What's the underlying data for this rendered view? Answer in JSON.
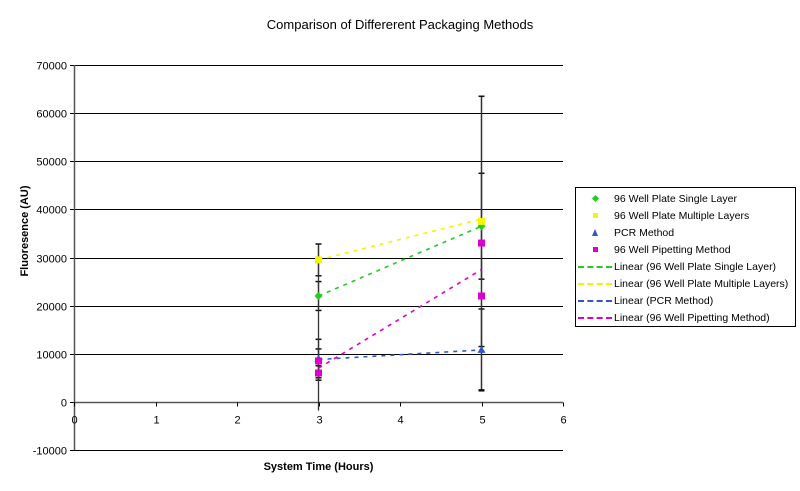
{
  "chart_data": {
    "type": "scatter",
    "title": "Comparison of Differerent Packaging Methods",
    "xlabel": "System Time (Hours)",
    "ylabel": "Fluoresence (AU)",
    "xlim": [
      0,
      6
    ],
    "ylim": [
      -10000,
      70000
    ],
    "x_ticks": [
      "0",
      "1",
      "2",
      "3",
      "4",
      "5",
      "6"
    ],
    "y_ticks": [
      "70000",
      "60000",
      "50000",
      "40000",
      "30000",
      "20000",
      "10000",
      "0",
      "-10000"
    ],
    "grid": "horizontal major gridlines",
    "legend_position": "right",
    "series": [
      {
        "name": "96 Well Plate Single Layer",
        "marker": "diamond",
        "color": "#22cc22",
        "points": [
          {
            "x": 3,
            "y": 22000,
            "err": 3000
          },
          {
            "x": 5,
            "y": 36500,
            "err": 11000
          }
        ]
      },
      {
        "name": "96 Well Plate Multiple Layers",
        "marker": "square",
        "color": "#f5f500",
        "points": [
          {
            "x": 3,
            "y": 29500,
            "err": 3300
          },
          {
            "x": 5,
            "y": 37500,
            "err": 26000
          }
        ]
      },
      {
        "name": "PCR Method",
        "marker": "triangle",
        "color": "#3355cc",
        "points": [
          {
            "x": 3,
            "y": 9000,
            "err": 4000
          },
          {
            "x": 5,
            "y": 10800,
            "err": 8500
          }
        ]
      },
      {
        "name": "96 Well Pipetting Method",
        "marker": "square",
        "color": "#dd00cc",
        "points": [
          {
            "x": 3,
            "y": 8500,
            "err": 2500
          },
          {
            "x": 3,
            "y": 6000,
            "err": 1500
          },
          {
            "x": 5,
            "y": 33000,
            "err": 0
          },
          {
            "x": 5,
            "y": 22000,
            "err": 0
          }
        ]
      }
    ],
    "trendlines": [
      {
        "name": "Linear (96 Well Plate Single Layer)",
        "color": "#22cc22",
        "x": [
          3,
          5
        ],
        "y": [
          22000,
          36500
        ]
      },
      {
        "name": "Linear (96 Well Plate Multiple Layers)",
        "color": "#f5f500",
        "x": [
          3,
          5
        ],
        "y": [
          29500,
          38000
        ]
      },
      {
        "name": "Linear (PCR Method)",
        "color": "#3355cc",
        "x": [
          3,
          5
        ],
        "y": [
          8800,
          10800
        ]
      },
      {
        "name": "Linear (96 Well Pipetting Method)",
        "color": "#dd00cc",
        "x": [
          3,
          5
        ],
        "y": [
          7000,
          27500
        ]
      }
    ]
  },
  "legend": {
    "items": [
      {
        "label": "96 Well Plate Single Layer"
      },
      {
        "label": "96 Well Plate Multiple Layers"
      },
      {
        "label": "PCR Method"
      },
      {
        "label": "96 Well Pipetting Method"
      },
      {
        "label": "Linear (96 Well Plate Single Layer)"
      },
      {
        "label": "Linear (96 Well Plate Multiple Layers)"
      },
      {
        "label": "Linear (PCR Method)"
      },
      {
        "label": "Linear (96 Well Pipetting Method)"
      }
    ]
  }
}
